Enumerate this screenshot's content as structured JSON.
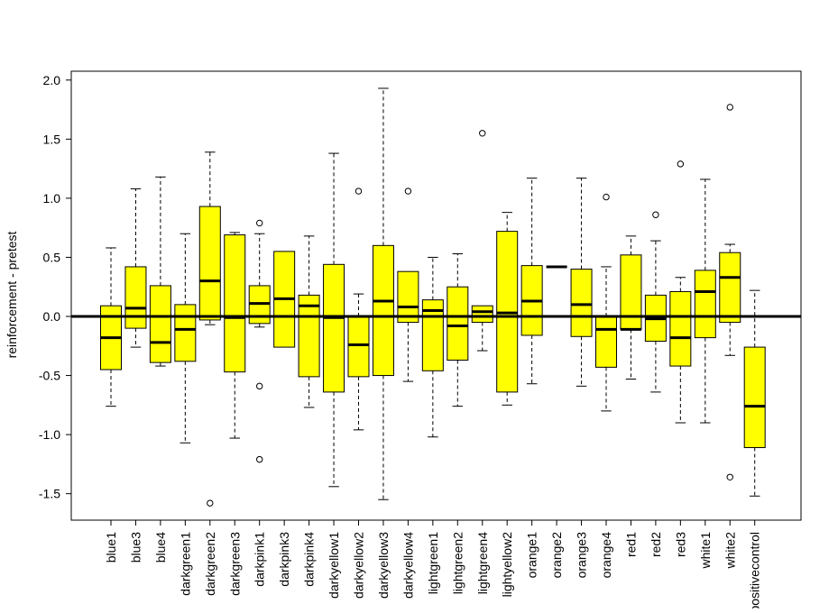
{
  "chart_data": {
    "type": "boxplot",
    "title": "",
    "ylabel": "reinforcement - pretest",
    "xlabel": "",
    "ylim": [
      -1.72,
      2.07
    ],
    "yticks": [
      -1.5,
      -1.0,
      -0.5,
      0.0,
      0.5,
      1.0,
      1.5,
      2.0
    ],
    "ytick_labels": [
      "-1.5",
      "-1.0",
      "-0.5",
      "0.0",
      "0.5",
      "1.0",
      "1.5",
      "2.0"
    ],
    "reference_line_y": 0.0,
    "box_fill": "#ffff00",
    "grid": false,
    "categories": [
      "blue1",
      "blue3",
      "blue4",
      "darkgreen1",
      "darkgreen2",
      "darkgreen3",
      "darkpink1",
      "darkpink3",
      "darkpink4",
      "darkyellow1",
      "darkyellow2",
      "darkyellow3",
      "darkyellow4",
      "lightgreen1",
      "lightgreen2",
      "lightgreen4",
      "lightyellow2",
      "orange1",
      "orange2",
      "orange3",
      "orange4",
      "red1",
      "red2",
      "red3",
      "white1",
      "white2",
      "positivecontrol"
    ],
    "boxes": [
      {
        "whisker_low": -0.76,
        "q1": -0.45,
        "median": -0.18,
        "q3": 0.09,
        "whisker_high": 0.58,
        "outliers": []
      },
      {
        "whisker_low": -0.26,
        "q1": -0.1,
        "median": 0.07,
        "q3": 0.42,
        "whisker_high": 1.08,
        "outliers": []
      },
      {
        "whisker_low": -0.42,
        "q1": -0.39,
        "median": -0.22,
        "q3": 0.26,
        "whisker_high": 1.18,
        "outliers": []
      },
      {
        "whisker_low": -1.07,
        "q1": -0.38,
        "median": -0.11,
        "q3": 0.1,
        "whisker_high": 0.7,
        "outliers": []
      },
      {
        "whisker_low": -0.07,
        "q1": -0.03,
        "median": 0.3,
        "q3": 0.93,
        "whisker_high": 1.39,
        "outliers": [
          -1.58
        ]
      },
      {
        "whisker_low": -1.03,
        "q1": -0.47,
        "median": -0.01,
        "q3": 0.69,
        "whisker_high": 0.71,
        "outliers": []
      },
      {
        "whisker_low": -0.09,
        "q1": -0.06,
        "median": 0.11,
        "q3": 0.26,
        "whisker_high": 0.7,
        "outliers": [
          0.79,
          -0.59,
          -1.21
        ]
      },
      {
        "whisker_low": -0.26,
        "q1": -0.26,
        "median": 0.15,
        "q3": 0.55,
        "whisker_high": 0.55,
        "outliers": []
      },
      {
        "whisker_low": -0.77,
        "q1": -0.51,
        "median": 0.09,
        "q3": 0.18,
        "whisker_high": 0.68,
        "outliers": []
      },
      {
        "whisker_low": -1.44,
        "q1": -0.64,
        "median": -0.01,
        "q3": 0.44,
        "whisker_high": 1.38,
        "outliers": []
      },
      {
        "whisker_low": -0.96,
        "q1": -0.51,
        "median": -0.24,
        "q3": 0.0,
        "whisker_high": 0.19,
        "outliers": [
          1.06
        ]
      },
      {
        "whisker_low": -1.55,
        "q1": -0.5,
        "median": 0.13,
        "q3": 0.6,
        "whisker_high": 1.93,
        "outliers": []
      },
      {
        "whisker_low": -0.55,
        "q1": -0.05,
        "median": 0.08,
        "q3": 0.38,
        "whisker_high": 0.38,
        "outliers": [
          1.06
        ]
      },
      {
        "whisker_low": -1.02,
        "q1": -0.46,
        "median": 0.05,
        "q3": 0.14,
        "whisker_high": 0.5,
        "outliers": []
      },
      {
        "whisker_low": -0.76,
        "q1": -0.37,
        "median": -0.08,
        "q3": 0.25,
        "whisker_high": 0.53,
        "outliers": []
      },
      {
        "whisker_low": -0.29,
        "q1": -0.05,
        "median": 0.04,
        "q3": 0.09,
        "whisker_high": 0.09,
        "outliers": [
          1.55
        ]
      },
      {
        "whisker_low": -0.75,
        "q1": -0.64,
        "median": 0.03,
        "q3": 0.72,
        "whisker_high": 0.88,
        "outliers": []
      },
      {
        "whisker_low": -0.57,
        "q1": -0.16,
        "median": 0.13,
        "q3": 0.43,
        "whisker_high": 1.17,
        "outliers": []
      },
      {
        "whisker_low": 0.42,
        "q1": 0.42,
        "median": 0.42,
        "q3": 0.42,
        "whisker_high": 0.42,
        "outliers": []
      },
      {
        "whisker_low": -0.59,
        "q1": -0.17,
        "median": 0.1,
        "q3": 0.4,
        "whisker_high": 1.17,
        "outliers": []
      },
      {
        "whisker_low": -0.8,
        "q1": -0.43,
        "median": -0.11,
        "q3": 0.0,
        "whisker_high": 0.42,
        "outliers": [
          1.01
        ]
      },
      {
        "whisker_low": -0.53,
        "q1": -0.11,
        "median": -0.11,
        "q3": 0.52,
        "whisker_high": 0.68,
        "outliers": []
      },
      {
        "whisker_low": -0.64,
        "q1": -0.21,
        "median": -0.02,
        "q3": 0.18,
        "whisker_high": 0.64,
        "outliers": [
          0.86
        ]
      },
      {
        "whisker_low": -0.9,
        "q1": -0.42,
        "median": -0.18,
        "q3": 0.21,
        "whisker_high": 0.33,
        "outliers": [
          1.29
        ]
      },
      {
        "whisker_low": -0.9,
        "q1": -0.18,
        "median": 0.21,
        "q3": 0.39,
        "whisker_high": 1.16,
        "outliers": []
      },
      {
        "whisker_low": -0.33,
        "q1": -0.05,
        "median": 0.33,
        "q3": 0.54,
        "whisker_high": 0.61,
        "outliers": [
          1.77,
          -1.36
        ]
      },
      {
        "whisker_low": -1.52,
        "q1": -1.11,
        "median": -0.76,
        "q3": -0.26,
        "whisker_high": 0.22,
        "outliers": []
      }
    ]
  }
}
